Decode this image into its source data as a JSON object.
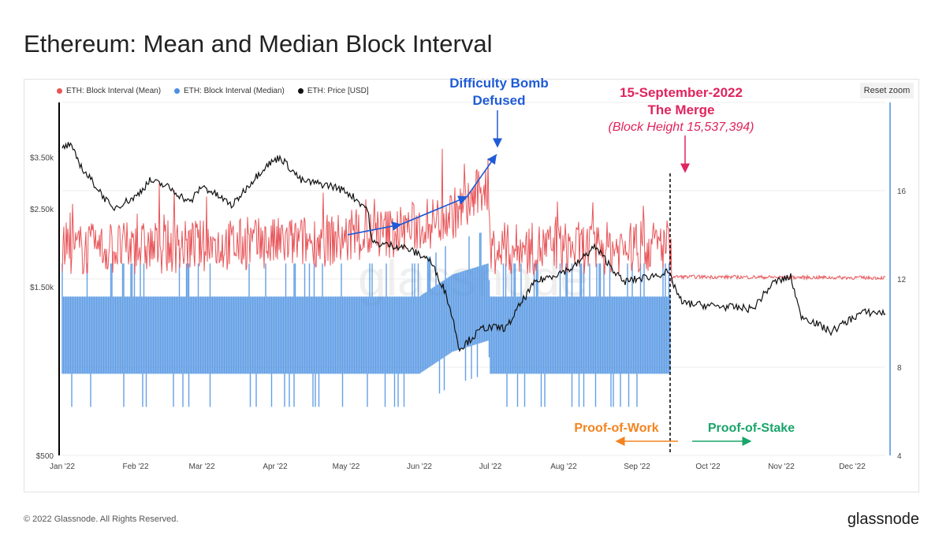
{
  "page": {
    "title": "Ethereum: Mean and Median Block Interval",
    "reset_zoom": "Reset zoom",
    "footer": "© 2022 Glassnode. All Rights Reserved.",
    "brand": "glassnode",
    "watermark": "glassnode"
  },
  "chart_data": {
    "type": "line",
    "title": "Ethereum: Mean and Median Block Interval",
    "x_ticks": [
      "Jan '22",
      "Feb '22",
      "Mar '22",
      "Apr '22",
      "May '22",
      "Jun '22",
      "Jul '22",
      "Aug '22",
      "Sep '22",
      "Oct '22",
      "Nov '22",
      "Dec '22"
    ],
    "x_range": [
      "2022-01-01",
      "2022-12-15"
    ],
    "y_left": {
      "scale": "log",
      "ticks": [
        "$500",
        "$1.50k",
        "$2.50k",
        "$3.50k"
      ],
      "tick_values": [
        500,
        1500,
        2500,
        3500
      ],
      "range": [
        500,
        5000
      ]
    },
    "y_right": {
      "ticks": [
        "4",
        "8",
        "12",
        "16"
      ],
      "tick_values": [
        4,
        8,
        12,
        16
      ],
      "range": [
        4,
        20
      ]
    },
    "legend_position": "top-left",
    "series": [
      {
        "name": "ETH: Block Interval (Mean)",
        "color": "#e8565a",
        "axis": "right",
        "x": [
          "2022-01-01",
          "2022-02-01",
          "2022-03-01",
          "2022-04-01",
          "2022-05-01",
          "2022-05-20",
          "2022-06-05",
          "2022-06-20",
          "2022-06-30",
          "2022-07-01",
          "2022-08-01",
          "2022-09-01",
          "2022-09-15",
          "2022-09-16",
          "2022-12-15"
        ],
        "y": [
          13.3,
          13.4,
          13.5,
          13.6,
          13.8,
          14.1,
          14.5,
          15.2,
          16.3,
          13.3,
          13.4,
          13.4,
          13.6,
          12.1,
          12.05
        ]
      },
      {
        "name": "ETH: Block Interval (Median)",
        "color": "#4a90e2",
        "axis": "right",
        "x": [
          "2022-01-01",
          "2022-06-01",
          "2022-06-15",
          "2022-06-30",
          "2022-07-01",
          "2022-09-15"
        ],
        "y": [
          9.5,
          9.5,
          10.5,
          11.0,
          9.5,
          9.5
        ]
      },
      {
        "name": "ETH: Price [USD]",
        "color": "#111111",
        "axis": "left",
        "x": [
          "2022-01-01",
          "2022-01-04",
          "2022-01-10",
          "2022-01-22",
          "2022-02-01",
          "2022-02-07",
          "2022-02-14",
          "2022-02-24",
          "2022-03-01",
          "2022-03-14",
          "2022-03-28",
          "2022-04-03",
          "2022-04-12",
          "2022-04-25",
          "2022-05-01",
          "2022-05-10",
          "2022-05-12",
          "2022-05-25",
          "2022-06-05",
          "2022-06-12",
          "2022-06-18",
          "2022-06-28",
          "2022-07-08",
          "2022-07-20",
          "2022-08-05",
          "2022-08-14",
          "2022-08-26",
          "2022-09-05",
          "2022-09-14",
          "2022-09-20",
          "2022-10-01",
          "2022-10-20",
          "2022-10-29",
          "2022-11-05",
          "2022-11-09",
          "2022-11-22",
          "2022-12-05",
          "2022-12-15"
        ],
        "y": [
          3700,
          3800,
          3200,
          2500,
          2700,
          3000,
          2900,
          2600,
          2900,
          2550,
          3300,
          3500,
          3000,
          2900,
          2800,
          2500,
          2000,
          1950,
          1800,
          1450,
          1000,
          1150,
          1150,
          1550,
          1700,
          1950,
          1550,
          1600,
          1650,
          1350,
          1330,
          1300,
          1550,
          1600,
          1250,
          1120,
          1270,
          1270
        ]
      }
    ],
    "annotations": [
      {
        "text": "Difficulty Bomb Defused",
        "x": "2022-06-30",
        "color": "#1f5bd6"
      },
      {
        "text": "15-September-2022",
        "x": "2022-09-15",
        "color": "#e0245e"
      },
      {
        "text": "The Merge",
        "x": "2022-09-15",
        "color": "#e0245e"
      },
      {
        "text": "(Block Height 15,537,394)",
        "x": "2022-09-15",
        "color": "#e0245e"
      },
      {
        "text": "Proof-of-Work",
        "color": "#f4831f"
      },
      {
        "text": "Proof-of-Stake",
        "color": "#1aa56a"
      }
    ]
  }
}
